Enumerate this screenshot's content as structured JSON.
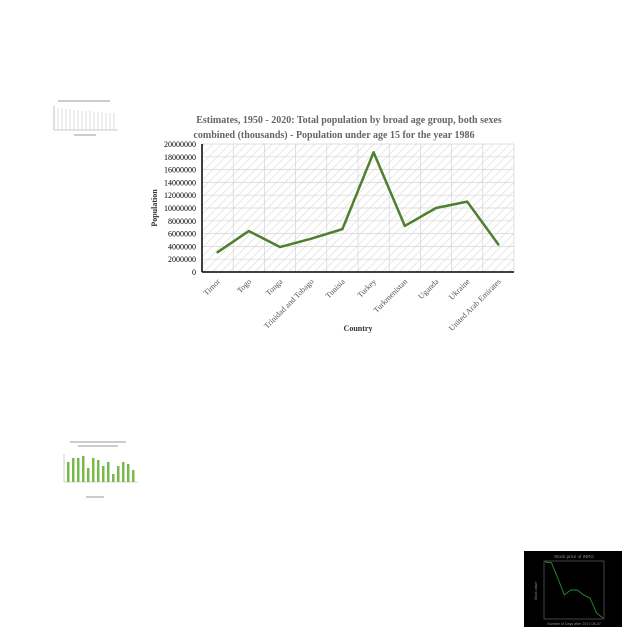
{
  "main_chart": {
    "title_line1": "Estimates, 1950 - 2020: Total population by broad age group, both sexes",
    "title_line2": "combined (thousands) - Population under age 15 for the year 1986",
    "xlabel": "Country",
    "ylabel": "Population",
    "line_color": "#4f7f2e"
  },
  "thumb_stock": {
    "title": "Stock price of INRG",
    "xlabel": "Number of Days after 2017-08-07",
    "ylabel": "Stock value",
    "line_color": "#2e8b2e"
  },
  "chart_data": [
    {
      "type": "line",
      "title": "Estimates, 1950 - 2020: Total population by broad age group, both sexes combined (thousands) - Population under age 15 for the year 1986",
      "xlabel": "Country",
      "ylabel": "Population",
      "categories": [
        "Timor",
        "Togo",
        "Tonga",
        "Trinidad and Tobago",
        "Tunisia",
        "Turkey",
        "Turkmenistan",
        "Uganda",
        "Ukraine",
        "United Arab Emirates"
      ],
      "series": [
        {
          "values": [
            3100000,
            6400000,
            3900000,
            5200000,
            6700000,
            18700000,
            7200000,
            10000000,
            11000000,
            4300000
          ]
        }
      ],
      "ylim": [
        0,
        20000000
      ],
      "yticks": [
        0,
        2000000,
        4000000,
        6000000,
        8000000,
        10000000,
        12000000,
        14000000,
        16000000,
        18000000,
        20000000
      ],
      "grid": true
    },
    {
      "type": "line",
      "title": "Stock price of INRG",
      "xlabel": "Number of Days after 2017-08-07",
      "ylabel": "Stock value",
      "x": [
        0,
        1,
        2,
        3,
        4,
        5,
        6,
        7,
        8,
        9
      ],
      "series": [
        {
          "values": [
            10.0,
            9.9,
            8.0,
            6.0,
            6.6,
            6.6,
            6.0,
            5.6,
            3.8,
            3.2
          ]
        }
      ],
      "grid": true
    }
  ]
}
